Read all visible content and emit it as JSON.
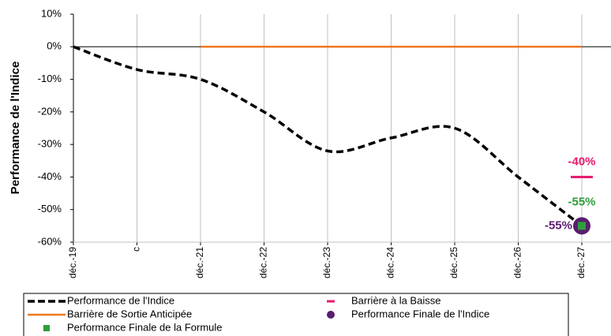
{
  "chart_data": {
    "type": "line",
    "y_label": "Performance de l'Indice",
    "categories": [
      "déc.-19",
      "c",
      "déc.-21",
      "déc.-22",
      "déc.-23",
      "déc.-24",
      "déc.-25",
      "déc.-26",
      "déc.-27"
    ],
    "ylim": [
      -60,
      10
    ],
    "yticks": [
      {
        "value": 10,
        "label": "10%"
      },
      {
        "value": 0,
        "label": "0%"
      },
      {
        "value": -10,
        "label": "-10%"
      },
      {
        "value": -20,
        "label": "-20%"
      },
      {
        "value": -30,
        "label": "-30%"
      },
      {
        "value": -40,
        "label": "-40%"
      },
      {
        "value": -50,
        "label": "-50%"
      },
      {
        "value": -60,
        "label": "-60%"
      }
    ],
    "grid": "vertical",
    "legend": "bottom",
    "series": [
      {
        "name": "Performance de l'Indice",
        "color": "#000000",
        "style": "dashed-line",
        "values": [
          0,
          -7,
          -10,
          -20,
          -32,
          -28,
          -25,
          -40,
          -55
        ]
      },
      {
        "name": "Barrière à la Baisse",
        "color": "#e6196e",
        "style": "dash-marker",
        "values": [
          null,
          null,
          null,
          null,
          null,
          null,
          null,
          null,
          -40
        ],
        "value_labels": [
          null,
          null,
          null,
          null,
          null,
          null,
          null,
          null,
          "-40%"
        ]
      },
      {
        "name": "Barrière de Sortie Anticipée",
        "color": "#f07820",
        "style": "line",
        "values": [
          null,
          null,
          0,
          0,
          0,
          0,
          0,
          0,
          0
        ]
      },
      {
        "name": "Performance Finale de l'Indice",
        "color": "#5a1e6e",
        "style": "circle-marker",
        "values": [
          null,
          null,
          null,
          null,
          null,
          null,
          null,
          null,
          -55
        ],
        "value_labels": [
          null,
          null,
          null,
          null,
          null,
          null,
          null,
          null,
          "-55%"
        ]
      },
      {
        "name": "Performance Finale de la Formule",
        "color": "#2e9e3c",
        "style": "square-marker",
        "values": [
          null,
          null,
          null,
          null,
          null,
          null,
          null,
          null,
          -55
        ],
        "value_labels": [
          null,
          null,
          null,
          null,
          null,
          null,
          null,
          null,
          "-55%"
        ]
      }
    ]
  }
}
